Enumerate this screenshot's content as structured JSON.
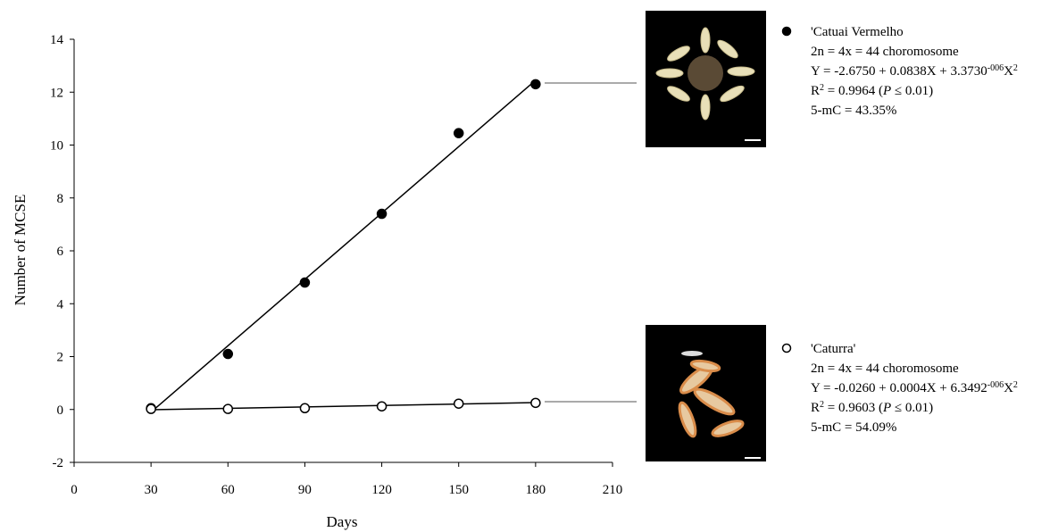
{
  "chart_data": {
    "type": "scatter",
    "x_label": "Days",
    "y_label": "Number of MCSE",
    "xlim": [
      0,
      210
    ],
    "xticks": [
      0,
      30,
      60,
      90,
      120,
      150,
      180,
      210
    ],
    "ylim": [
      -2,
      14
    ],
    "yticks": [
      -2,
      0,
      2,
      4,
      6,
      8,
      10,
      12,
      14
    ],
    "series": [
      {
        "name": "'Catuai Vermelho",
        "color": "#000000",
        "marker_fill": "#000000",
        "x": [
          30,
          60,
          90,
          120,
          150,
          180
        ],
        "values": [
          0.05,
          2.1,
          4.8,
          7.4,
          10.45,
          12.3
        ],
        "fit": {
          "x": [
            30,
            180
          ],
          "values": [
            -0.1,
            12.45
          ]
        },
        "legend_lines": [
          [
            {
              "text": "2n = 4x = 44 choromosome"
            }
          ],
          [
            {
              "text": "Y = -2.6750 + 0.0838X + 3.3730"
            },
            {
              "text": "-006",
              "sup": true
            },
            {
              "text": "X"
            },
            {
              "text": "2",
              "sup": true
            }
          ],
          [
            {
              "text": "R"
            },
            {
              "text": "2",
              "sup": true
            },
            {
              "text": " = 0.9964 ("
            },
            {
              "text": "P",
              "italic": true
            },
            {
              "text": " ≤ 0.01)"
            }
          ],
          [
            {
              "text": "5-mC = 43.35%"
            }
          ]
        ]
      },
      {
        "name": "'Caturra'",
        "color": "#000000",
        "marker_fill": "#ffffff",
        "x": [
          30,
          60,
          90,
          120,
          150,
          180
        ],
        "values": [
          0.02,
          0.02,
          0.05,
          0.12,
          0.22,
          0.25
        ],
        "fit": {
          "x": [
            30,
            180
          ],
          "values": [
            -0.01,
            0.26
          ]
        },
        "legend_lines": [
          [
            {
              "text": "2n = 4x = 44 choromosome"
            }
          ],
          [
            {
              "text": "Y = -0.0260 + 0.0004X + 6.3492"
            },
            {
              "text": "-006",
              "sup": true
            },
            {
              "text": "X"
            },
            {
              "text": "2",
              "sup": true
            }
          ],
          [
            {
              "text": "R"
            },
            {
              "text": "2",
              "sup": true
            },
            {
              "text": " = 0.9603 ("
            },
            {
              "text": "P",
              "italic": true
            },
            {
              "text": " ≤ 0.01)"
            }
          ],
          [
            {
              "text": "5-mC = 54.09%"
            }
          ]
        ]
      }
    ]
  }
}
